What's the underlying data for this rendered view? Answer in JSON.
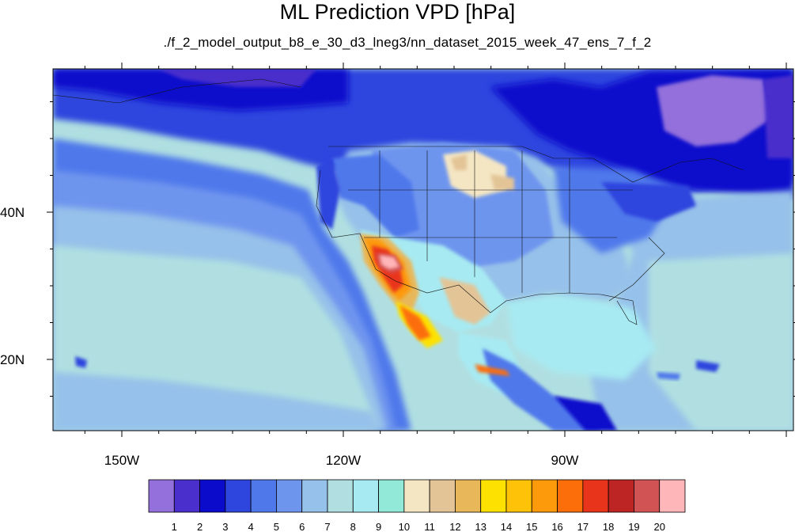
{
  "title": "ML Prediction VPD [hPa]",
  "subtitle": "./f_2_model_output_b8_e_30_d3_lneg3/nn_dataset_2015_week_47_ens_7_f_2",
  "map": {
    "lat_ticks": [
      {
        "value": 40,
        "label": "40N"
      },
      {
        "value": 20,
        "label": "20N"
      }
    ],
    "lon_ticks": [
      {
        "value": -150,
        "label": "150W"
      },
      {
        "value": -120,
        "label": "120W"
      },
      {
        "value": -90,
        "label": "90W"
      }
    ]
  },
  "colorbar": {
    "labels": [
      "1",
      "2",
      "3",
      "4",
      "5",
      "6",
      "7",
      "8",
      "9",
      "10",
      "11",
      "12",
      "13",
      "14",
      "15",
      "16",
      "17",
      "18",
      "19",
      "20"
    ],
    "colors": [
      "#9370DB",
      "#4A2FCC",
      "#0B0BCC",
      "#2E45DE",
      "#4F78EB",
      "#6E95EE",
      "#96C1EA",
      "#B1DFE1",
      "#A7EAF2",
      "#93E9D8",
      "#F4E6C3",
      "#E3C496",
      "#E8B75A",
      "#FDE100",
      "#FEC208",
      "#FD9A0C",
      "#FC6E0A",
      "#E9341C",
      "#BD2424",
      "#D25353",
      "#FFB6B8"
    ]
  }
}
